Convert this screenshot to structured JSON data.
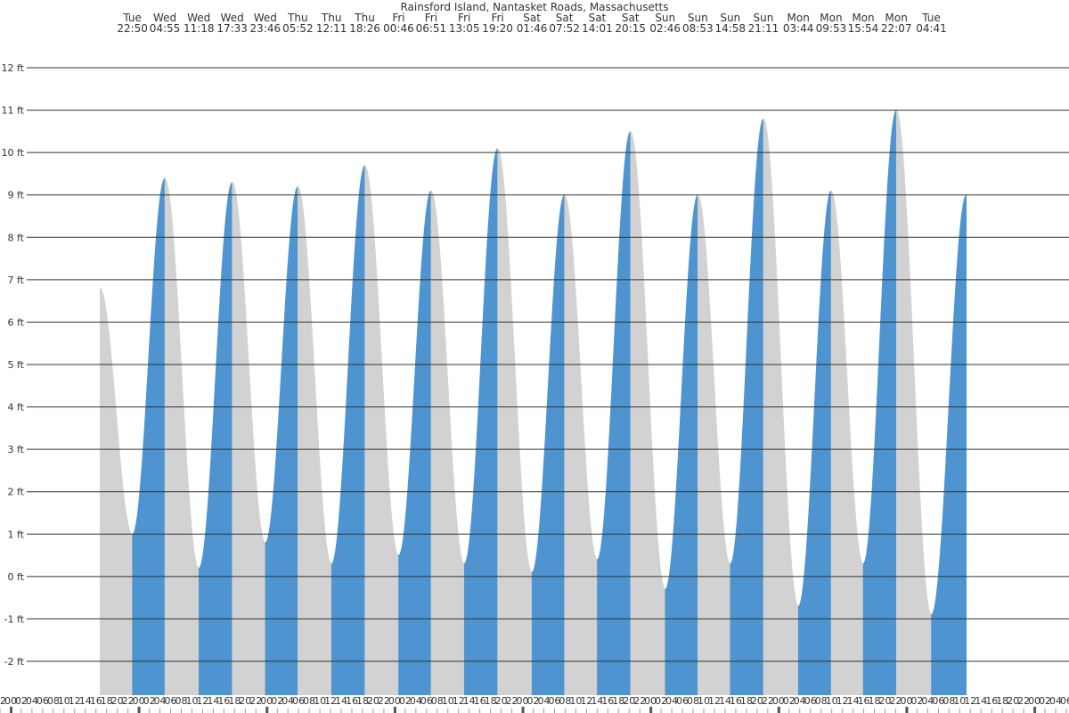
{
  "chart_data": {
    "type": "area",
    "title": "Rainsford Island, Nantasket Roads, Massachusetts",
    "ylabel": "",
    "xlabel": "",
    "y_unit": "ft",
    "ylim": [
      -2.8,
      12.8
    ],
    "y_ticks": [
      -2,
      -1,
      0,
      1,
      2,
      3,
      4,
      5,
      6,
      7,
      8,
      9,
      10,
      11,
      12
    ],
    "grid": true,
    "x_range_hours": [
      -2,
      198.5
    ],
    "start_clock_hour": 20,
    "colors": {
      "rising": "#4d94d0",
      "falling": "#d2d2d2",
      "grid": "#333333",
      "text": "#333333"
    },
    "tide_events": [
      {
        "day": "Tue",
        "time": "22:50",
        "height": 1.0
      },
      {
        "day": "Wed",
        "time": "04:55",
        "height": 9.4
      },
      {
        "day": "Wed",
        "time": "11:18",
        "height": 0.2
      },
      {
        "day": "Wed",
        "time": "17:33",
        "height": 9.3
      },
      {
        "day": "Wed",
        "time": "23:46",
        "height": 0.8
      },
      {
        "day": "Thu",
        "time": "05:52",
        "height": 9.2
      },
      {
        "day": "Thu",
        "time": "12:11",
        "height": 0.3
      },
      {
        "day": "Thu",
        "time": "18:26",
        "height": 9.7
      },
      {
        "day": "Fri",
        "time": "00:46",
        "height": 0.5
      },
      {
        "day": "Fri",
        "time": "06:51",
        "height": 9.1
      },
      {
        "day": "Fri",
        "time": "13:05",
        "height": 0.3
      },
      {
        "day": "Fri",
        "time": "19:20",
        "height": 10.1
      },
      {
        "day": "Sat",
        "time": "01:46",
        "height": 0.1
      },
      {
        "day": "Sat",
        "time": "07:52",
        "height": 9.0
      },
      {
        "day": "Sat",
        "time": "14:01",
        "height": 0.4
      },
      {
        "day": "Sat",
        "time": "20:15",
        "height": 10.5
      },
      {
        "day": "Sun",
        "time": "02:46",
        "height": -0.3
      },
      {
        "day": "Sun",
        "time": "08:53",
        "height": 9.0
      },
      {
        "day": "Sun",
        "time": "14:58",
        "height": 0.3
      },
      {
        "day": "Sun",
        "time": "21:11",
        "height": 10.8
      },
      {
        "day": "Mon",
        "time": "03:44",
        "height": -0.7
      },
      {
        "day": "Mon",
        "time": "09:53",
        "height": 9.1
      },
      {
        "day": "Mon",
        "time": "15:54",
        "height": 0.3
      },
      {
        "day": "Mon",
        "time": "22:07",
        "height": 11.0
      },
      {
        "day": "Tue",
        "time": "04:41",
        "height": -0.9
      }
    ],
    "hour_tick_labels": [
      "20",
      "22",
      "00",
      "02",
      "04",
      "06",
      "08",
      "10",
      "12",
      "14",
      "16",
      "18",
      "20",
      "22",
      "00",
      "02",
      "04",
      "06",
      "08",
      "10",
      "12",
      "14",
      "16",
      "18",
      "20",
      "22",
      "00",
      "02",
      "04",
      "06",
      "08",
      "10",
      "12",
      "14",
      "16",
      "18",
      "20",
      "22",
      "00",
      "02",
      "04",
      "06",
      "08",
      "10",
      "12",
      "14",
      "16",
      "18",
      "20",
      "22",
      "00",
      "02",
      "04",
      "06",
      "08",
      "10",
      "12",
      "14",
      "16",
      "18",
      "20",
      "22",
      "00",
      "02",
      "04",
      "06",
      "08",
      "10",
      "12",
      "14",
      "16",
      "18",
      "20",
      "22",
      "00",
      "02",
      "04",
      "06",
      "08",
      "10",
      "12",
      "14",
      "16",
      "18",
      "20",
      "22",
      "00",
      "02",
      "04",
      "06",
      "08",
      "10",
      "12",
      "14",
      "16",
      "18",
      "20",
      "22",
      "00",
      "02",
      "04",
      "06"
    ]
  }
}
